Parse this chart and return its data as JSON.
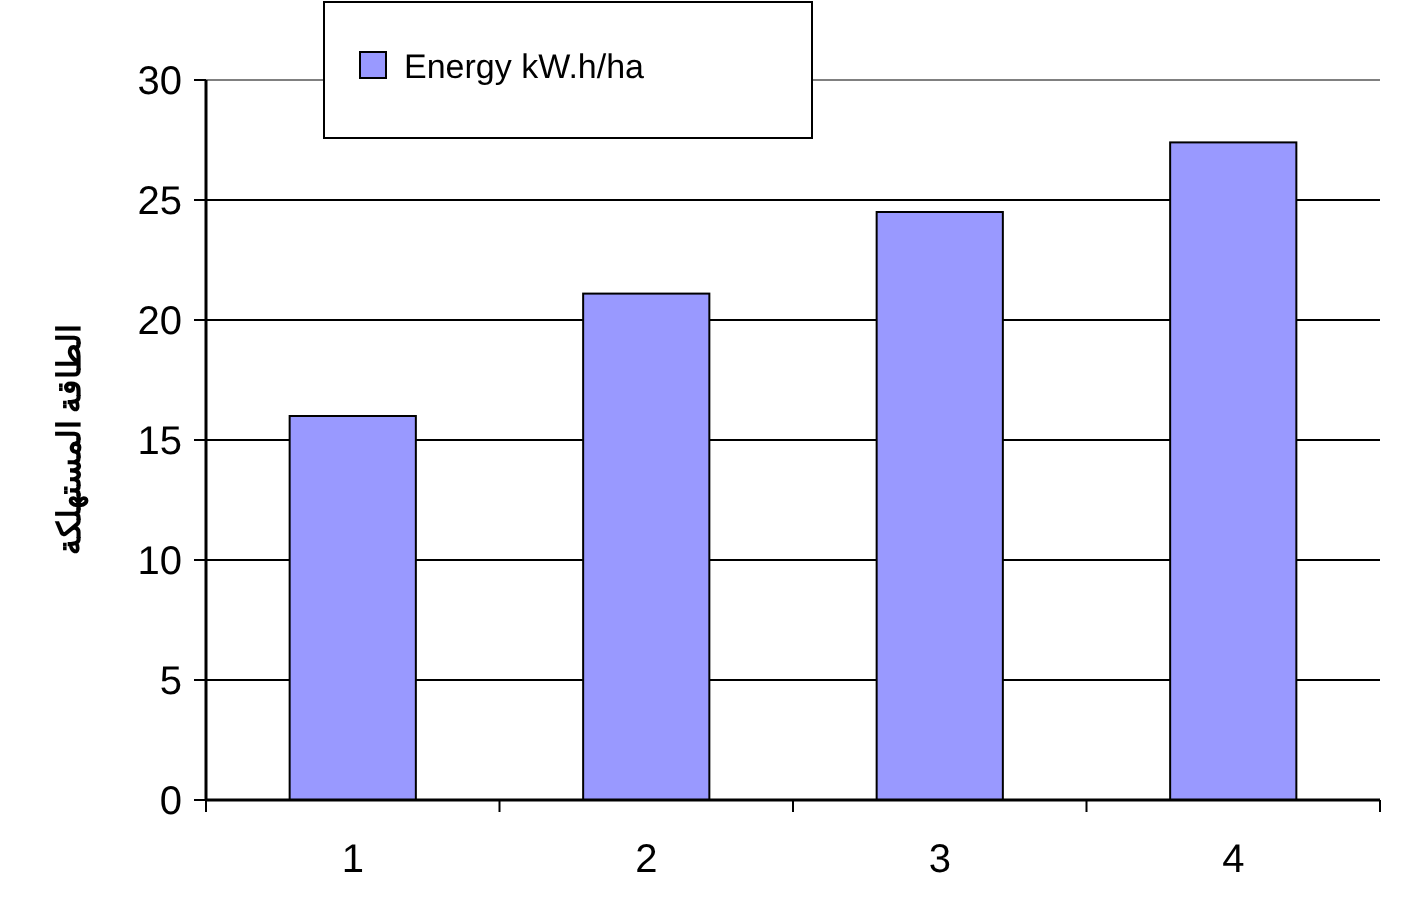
{
  "chart_data": {
    "type": "bar",
    "ylabel": "الطاقة المستهلكة",
    "categories": [
      "1",
      "2",
      "3",
      "4"
    ],
    "series": [
      {
        "name": "Energy kW.h/ha",
        "color": "#9999ff",
        "values": [
          16,
          21.1,
          24.5,
          27.4
        ]
      }
    ],
    "ylim": [
      0,
      30
    ],
    "yticks": [
      0,
      5,
      10,
      15,
      20,
      25,
      30
    ],
    "grid": "y",
    "legend": "top left"
  }
}
